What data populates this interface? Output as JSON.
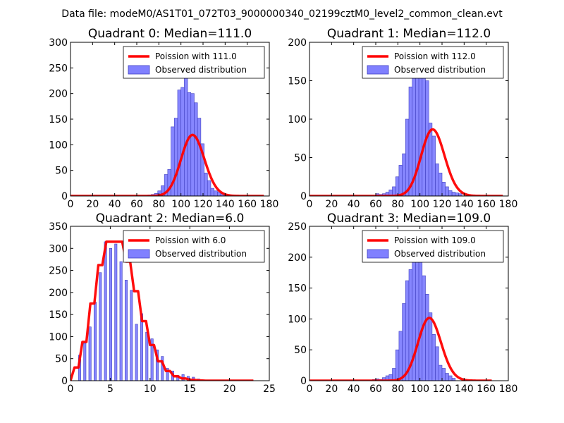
{
  "figure_title": "Data file: modeM0/AS1T01_072T03_9000000340_02199cztM0_level2_common_clean.evt",
  "colors": {
    "bar_fill": "#8080ff",
    "bar_edge": "#4040c0",
    "curve": "#ff0000"
  },
  "chart_data": [
    {
      "type": "bar",
      "panel": 0,
      "title": "Quadrant 0: Median=111.0",
      "xlim": [
        0,
        180
      ],
      "ylim": [
        0,
        300
      ],
      "xticks": [
        0,
        20,
        40,
        60,
        80,
        100,
        120,
        140,
        160,
        180
      ],
      "yticks": [
        0,
        50,
        100,
        150,
        200,
        250,
        300
      ],
      "legend": {
        "placement": "top-right",
        "line_label": "Poission with 111.0",
        "bar_label": "Observed distribution"
      },
      "hist": {
        "start": 70,
        "width": 3,
        "values": [
          2,
          3,
          5,
          10,
          20,
          42,
          52,
          135,
          152,
          207,
          212,
          254,
          202,
          200,
          182,
          152,
          102,
          45,
          30,
          15,
          10,
          8,
          5,
          3,
          2,
          1
        ]
      },
      "poisson_mean": 111.0,
      "poisson_scale": 3150,
      "curve_range": [
        0,
        175
      ]
    },
    {
      "type": "bar",
      "panel": 1,
      "title": "Quadrant 1: Median=112.0",
      "xlim": [
        0,
        180
      ],
      "ylim": [
        0,
        200
      ],
      "xticks": [
        0,
        20,
        40,
        60,
        80,
        100,
        120,
        140,
        160,
        180
      ],
      "yticks": [
        0,
        50,
        100,
        150,
        200
      ],
      "legend": {
        "placement": "top-right",
        "line_label": "Poission with 112.0",
        "bar_label": "Observed distribution"
      },
      "hist": {
        "start": 60,
        "width": 3,
        "values": [
          3,
          2,
          3,
          5,
          8,
          12,
          25,
          40,
          55,
          100,
          142,
          175,
          163,
          165,
          172,
          150,
          95,
          78,
          42,
          30,
          18,
          12,
          7,
          5,
          4,
          3
        ]
      },
      "poisson_mean": 112.0,
      "poisson_scale": 2300,
      "curve_range": [
        0,
        175
      ]
    },
    {
      "type": "bar",
      "panel": 2,
      "title": "Quadrant 2: Median=6.0",
      "xlim": [
        0,
        25
      ],
      "ylim": [
        0,
        350
      ],
      "xticks": [
        0,
        5,
        10,
        15,
        20,
        25
      ],
      "yticks": [
        0,
        50,
        100,
        150,
        200,
        250,
        300,
        350
      ],
      "legend": {
        "placement": "top-right",
        "line_label": "Poission with 6.0",
        "bar_label": "Observed distribution"
      },
      "hist": {
        "centers": [
          1.15,
          1.8,
          2.45,
          3.1,
          3.75,
          4.4,
          5.05,
          5.7,
          6.35,
          7.0,
          7.65,
          8.3,
          8.95,
          9.6,
          10.25,
          10.9,
          11.55,
          12.2,
          12.85,
          13.5,
          14.15,
          14.8,
          15.45,
          16.1
        ],
        "bar_width": 0.3,
        "values": [
          58,
          85,
          122,
          178,
          245,
          315,
          300,
          310,
          270,
          228,
          205,
          128,
          152,
          110,
          95,
          70,
          55,
          28,
          22,
          12,
          14,
          10,
          8,
          4
        ]
      },
      "line": {
        "x": [
          0,
          0.5,
          1.0,
          1.5,
          2.0,
          2.5,
          3.0,
          3.5,
          4.0,
          4.5,
          5.0,
          6.5,
          7.0,
          7.5,
          8.0,
          8.5,
          9.0,
          9.5,
          10.0,
          10.5,
          11.0,
          11.5,
          12.0,
          12.5,
          13.0,
          13.5,
          14.0,
          14.5,
          15.0,
          15.5,
          16.0,
          17.0,
          23.0
        ],
        "y": [
          0,
          30,
          30,
          88,
          88,
          175,
          175,
          262,
          262,
          315,
          315,
          315,
          270,
          270,
          203,
          203,
          135,
          135,
          81,
          81,
          44,
          44,
          22,
          22,
          10,
          10,
          5,
          5,
          2,
          2,
          1,
          0,
          0
        ]
      }
    },
    {
      "type": "bar",
      "panel": 3,
      "title": "Quadrant 3: Median=109.0",
      "xlim": [
        0,
        180
      ],
      "ylim": [
        0,
        250
      ],
      "xticks": [
        0,
        20,
        40,
        60,
        80,
        100,
        120,
        140,
        160,
        180
      ],
      "yticks": [
        0,
        50,
        100,
        150,
        200,
        250
      ],
      "legend": {
        "placement": "top-right",
        "line_label": "Poission with 109.0",
        "bar_label": "Observed distribution"
      },
      "hist": {
        "start": 57,
        "width": 3,
        "values": [
          2,
          3,
          2,
          5,
          8,
          10,
          20,
          50,
          80,
          125,
          162,
          180,
          205,
          235,
          210,
          170,
          140,
          110,
          75,
          55,
          25,
          20,
          12,
          8,
          4
        ]
      },
      "poisson_mean": 109.0,
      "poisson_scale": 2660,
      "curve_range": [
        0,
        165
      ]
    }
  ]
}
